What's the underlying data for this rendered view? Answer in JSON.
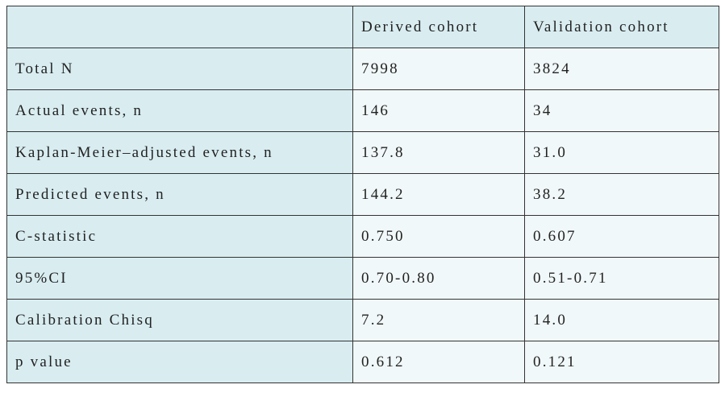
{
  "table": {
    "columns": [
      "Derived cohort",
      "Validation cohort"
    ],
    "rows": [
      [
        "Total N",
        "7998",
        "3824"
      ],
      [
        "Actual events, n",
        "146",
        "34"
      ],
      [
        "Kaplan-Meier–adjusted events, n",
        "137.8",
        "31.0"
      ],
      [
        "Predicted events, n",
        "144.2",
        "38.2"
      ],
      [
        "C-statistic",
        "0.750",
        "0.607"
      ],
      [
        "95%CI",
        "0.70-0.80",
        "0.51-0.71"
      ],
      [
        "Calibration Chisq",
        "7.2",
        "14.0"
      ],
      [
        "p value",
        "0.612",
        "0.121"
      ]
    ]
  }
}
